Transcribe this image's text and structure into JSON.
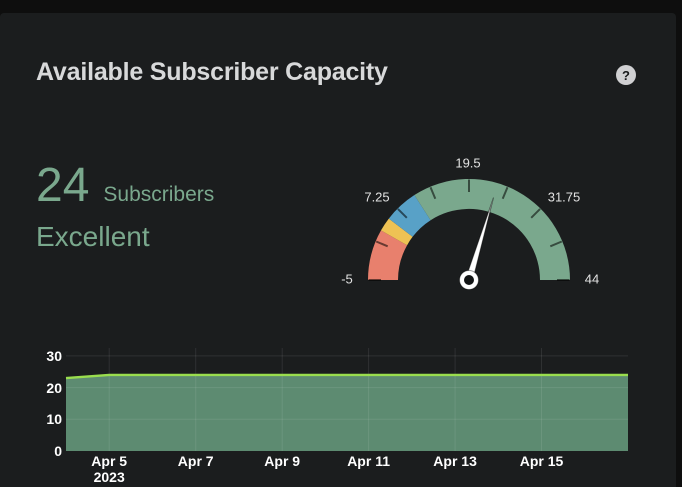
{
  "panel": {
    "title": "Available Subscriber Capacity",
    "help_icon": "?"
  },
  "stat": {
    "value": "24",
    "unit": "Subscribers",
    "status_text": "Excellent",
    "text_color": "#7aa88d"
  },
  "chart_data": [
    {
      "type": "gauge",
      "min": -5,
      "max": 44,
      "value": 24,
      "tick_step": 6.125,
      "tick_labels": [
        "-5",
        "7.25",
        "19.5",
        "31.75",
        "44"
      ],
      "segments": [
        {
          "name": "red",
          "from": -5,
          "to": 3,
          "color": "#e8806d"
        },
        {
          "name": "yellow",
          "from": 3,
          "to": 5.2,
          "color": "#eec254"
        },
        {
          "name": "blue",
          "from": 5.2,
          "to": 10.6,
          "color": "#58a1c7"
        },
        {
          "name": "green",
          "from": 10.6,
          "to": 44,
          "color": "#7aa88d"
        }
      ],
      "needle_color": "#ffffff"
    },
    {
      "type": "area",
      "series": [
        {
          "name": "Subscribers",
          "points": [
            {
              "x": "Apr 4 2023",
              "day": 4,
              "y": 23
            },
            {
              "x": "Apr 5 2023",
              "day": 5,
              "y": 24
            },
            {
              "x": "Apr 17 2023",
              "day": 17,
              "y": 24
            }
          ]
        }
      ],
      "x_ticks": [
        {
          "label": "Apr 5",
          "sub": "2023",
          "day": 5
        },
        {
          "label": "Apr 7",
          "day": 7
        },
        {
          "label": "Apr 9",
          "day": 9
        },
        {
          "label": "Apr 11",
          "day": 11
        },
        {
          "label": "Apr 13",
          "day": 13
        },
        {
          "label": "Apr 15",
          "day": 15
        }
      ],
      "y_ticks": [
        0,
        10,
        20,
        30
      ],
      "x_range_days": [
        4,
        17
      ],
      "ylim": [
        0,
        32.5
      ],
      "grid": true,
      "legend": false,
      "line_color": "#9ade4e",
      "fill_color": "#5d8b71"
    }
  ]
}
